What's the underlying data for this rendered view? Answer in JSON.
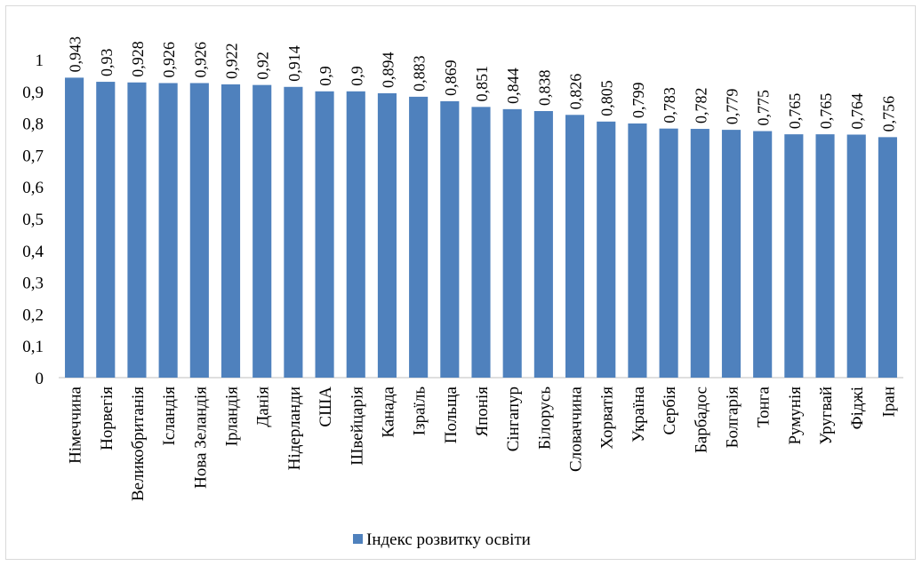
{
  "chart_data": {
    "type": "bar",
    "categories": [
      "Німеччина",
      "Норвегія",
      "Великобританія",
      "Ісландія",
      "Нова Зеландія",
      "Ірландія",
      "Данія",
      "Нідерланди",
      "США",
      "Швейцарія",
      "Канада",
      "Ізраїль",
      "Польща",
      "Японія",
      "Сінгапур",
      "Білорусь",
      "Словаччина",
      "Хорватія",
      "Україна",
      "Сербія",
      "Барбадос",
      "Болгарія",
      "Тонга",
      "Румунія",
      "Уругвай",
      "Фіджі",
      "Іран"
    ],
    "series": [
      {
        "name": "Індекс розвитку освіти",
        "values": [
          0.943,
          0.93,
          0.928,
          0.926,
          0.926,
          0.922,
          0.92,
          0.914,
          0.9,
          0.9,
          0.894,
          0.883,
          0.869,
          0.851,
          0.844,
          0.838,
          0.826,
          0.805,
          0.799,
          0.783,
          0.782,
          0.779,
          0.775,
          0.765,
          0.765,
          0.764,
          0.756
        ],
        "labels": [
          "0,943",
          "0,93",
          "0,928",
          "0,926",
          "0,926",
          "0,922",
          "0,92",
          "0,914",
          "0,9",
          "0,9",
          "0,894",
          "0,883",
          "0,869",
          "0,851",
          "0,844",
          "0,838",
          "0,826",
          "0,805",
          "0,799",
          "0,783",
          "0,782",
          "0,779",
          "0,775",
          "0,765",
          "0,765",
          "0,764",
          "0,756"
        ],
        "color": "#4f81bd"
      }
    ],
    "y_ticks": [
      "0",
      "0,1",
      "0,2",
      "0,3",
      "0,4",
      "0,5",
      "0,6",
      "0,7",
      "0,8",
      "0,9",
      "1"
    ],
    "ylim": [
      0,
      1
    ],
    "grid": false,
    "legend_position": "bottom",
    "title": "",
    "xlabel": "",
    "ylabel": ""
  }
}
